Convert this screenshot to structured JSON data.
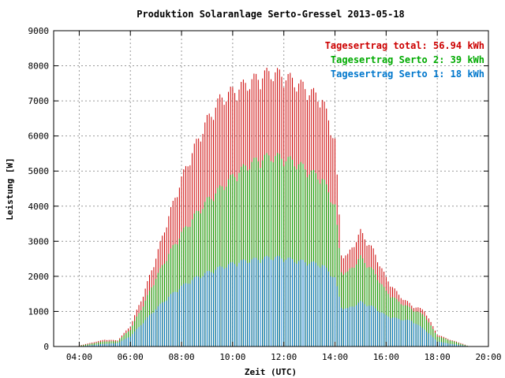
{
  "chart_data": {
    "type": "bar",
    "title": "Produktion Solaranlage Serto-Gressel 2013-05-18",
    "xlabel": "Zeit (UTC)",
    "ylabel": "Leistung [W]",
    "xlim": [
      "03:00",
      "20:00"
    ],
    "ylim": [
      0,
      9000
    ],
    "x_ticks": [
      "04:00",
      "06:00",
      "08:00",
      "10:00",
      "12:00",
      "14:00",
      "16:00",
      "18:00",
      "20:00"
    ],
    "y_ticks": [
      "0",
      "1000",
      "2000",
      "3000",
      "4000",
      "5000",
      "6000",
      "7000",
      "8000",
      "9000"
    ],
    "grid": true,
    "legend_position": "top-right",
    "legend": [
      {
        "label": "Tagesertrag total: 56.94 kWh",
        "color": "#cc0000"
      },
      {
        "label": "Tagesertrag Serto 2: 39 kWh",
        "color": "#00aa00"
      },
      {
        "label": "Tagesertrag Serto 1: 18 kWh",
        "color": "#0077cc"
      }
    ],
    "series": [
      {
        "color": "#0077cc",
        "profile": [
          [
            "04:00",
            0
          ],
          [
            "05:00",
            80
          ],
          [
            "05:30",
            100
          ],
          [
            "06:00",
            300
          ],
          [
            "06:30",
            700
          ],
          [
            "07:00",
            1100
          ],
          [
            "07:30",
            1450
          ],
          [
            "08:00",
            1750
          ],
          [
            "08:30",
            1980
          ],
          [
            "09:00",
            2150
          ],
          [
            "09:30",
            2300
          ],
          [
            "10:00",
            2420
          ],
          [
            "10:30",
            2500
          ],
          [
            "11:00",
            2550
          ],
          [
            "11:30",
            2600
          ],
          [
            "12:00",
            2580
          ],
          [
            "12:30",
            2500
          ],
          [
            "13:00",
            2450
          ],
          [
            "13:30",
            2380
          ],
          [
            "14:00",
            2000
          ],
          [
            "14:15",
            1150
          ],
          [
            "14:30",
            1100
          ],
          [
            "15:00",
            1300
          ],
          [
            "15:30",
            1150
          ],
          [
            "16:00",
            900
          ],
          [
            "16:30",
            800
          ],
          [
            "17:00",
            750
          ],
          [
            "17:30",
            500
          ],
          [
            "18:00",
            150
          ],
          [
            "18:30",
            80
          ],
          [
            "19:00",
            30
          ],
          [
            "19:15",
            0
          ]
        ]
      },
      {
        "color": "#00aa00",
        "profile": [
          [
            "04:00",
            20
          ],
          [
            "05:00",
            150
          ],
          [
            "05:30",
            150
          ],
          [
            "06:00",
            500
          ],
          [
            "06:30",
            1200
          ],
          [
            "07:00",
            2000
          ],
          [
            "07:30",
            2700
          ],
          [
            "08:00",
            3300
          ],
          [
            "08:30",
            3800
          ],
          [
            "09:00",
            4250
          ],
          [
            "09:30",
            4600
          ],
          [
            "10:00",
            4950
          ],
          [
            "10:30",
            5250
          ],
          [
            "11:00",
            5450
          ],
          [
            "11:30",
            5550
          ],
          [
            "12:00",
            5500
          ],
          [
            "12:30",
            5350
          ],
          [
            "13:00",
            5100
          ],
          [
            "13:30",
            4900
          ],
          [
            "14:00",
            4100
          ],
          [
            "14:15",
            2200
          ],
          [
            "14:30",
            2150
          ],
          [
            "15:00",
            2600
          ],
          [
            "15:30",
            2200
          ],
          [
            "16:00",
            1600
          ],
          [
            "16:30",
            1300
          ],
          [
            "17:00",
            1100
          ],
          [
            "17:30",
            900
          ],
          [
            "18:00",
            300
          ],
          [
            "18:30",
            180
          ],
          [
            "19:00",
            60
          ],
          [
            "19:15",
            0
          ]
        ]
      },
      {
        "color": "#cc0000",
        "profile": [
          [
            "04:00",
            30
          ],
          [
            "05:00",
            200
          ],
          [
            "05:30",
            180
          ],
          [
            "06:00",
            600
          ],
          [
            "06:30",
            1500
          ],
          [
            "07:00",
            2600
          ],
          [
            "07:30",
            3800
          ],
          [
            "08:00",
            4900
          ],
          [
            "08:30",
            5800
          ],
          [
            "09:00",
            6600
          ],
          [
            "09:30",
            7200
          ],
          [
            "10:00",
            7450
          ],
          [
            "10:30",
            7650
          ],
          [
            "11:00",
            7850
          ],
          [
            "11:30",
            8000
          ],
          [
            "12:00",
            7900
          ],
          [
            "12:30",
            7700
          ],
          [
            "13:00",
            7450
          ],
          [
            "13:30",
            7200
          ],
          [
            "14:00",
            6000
          ],
          [
            "14:15",
            2700
          ],
          [
            "14:30",
            2650
          ],
          [
            "15:00",
            3350
          ],
          [
            "15:30",
            2800
          ],
          [
            "16:00",
            2000
          ],
          [
            "16:30",
            1500
          ],
          [
            "17:00",
            1200
          ],
          [
            "17:30",
            1050
          ],
          [
            "18:00",
            350
          ],
          [
            "18:30",
            200
          ],
          [
            "19:00",
            80
          ],
          [
            "19:15",
            0
          ]
        ]
      }
    ]
  }
}
